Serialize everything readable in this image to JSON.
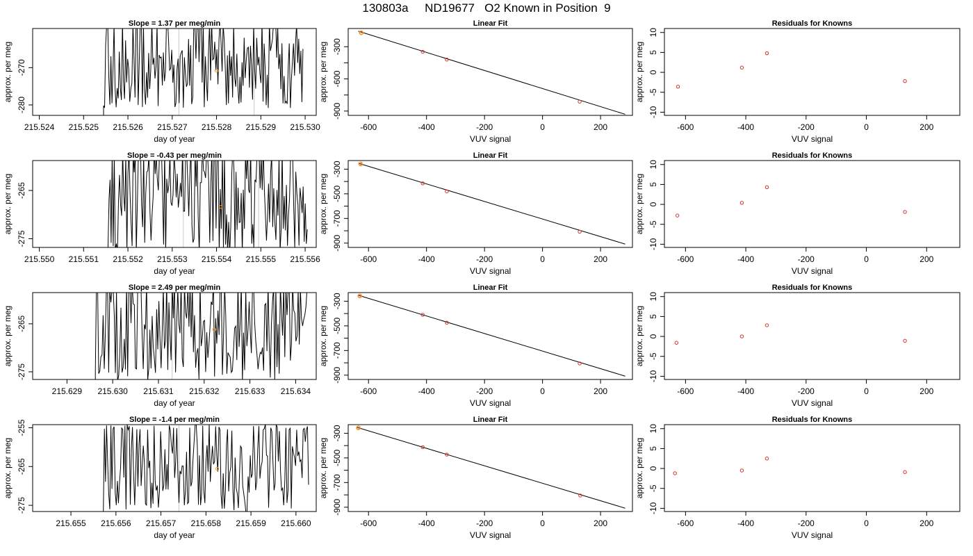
{
  "figure": {
    "title": "130803a     ND19677   O2 Known in Position  9"
  },
  "colors": {
    "trace": "#000000",
    "marker": "#f59a23",
    "residual": "#d0342c",
    "refline": "#c8c8c8"
  },
  "chart_data": [
    {
      "type": "line",
      "row": 0,
      "col": 0,
      "title": "Slope =  1.37  per meg/min",
      "xlabel": "day of year",
      "ylabel": "approx. per meg",
      "xlim": [
        215.52385,
        215.53025
      ],
      "ylim": [
        -282.8,
        -259.5
      ],
      "xticks": [
        215.524,
        215.525,
        215.526,
        215.527,
        215.528,
        215.529,
        215.53
      ],
      "xtick_labels": [
        "215.524",
        "215.525",
        "215.526",
        "215.527",
        "215.528",
        "215.529",
        "215.530"
      ],
      "yticks": [
        -280,
        -270
      ],
      "ytick_labels": [
        "-280",
        "-270"
      ],
      "trace": {
        "x_start": 215.52545,
        "x_end": 215.52995,
        "ymin": -281,
        "ymax": -257,
        "seed": 11,
        "lead": 215.5253
      },
      "vlines": [
        215.52715,
        215.52885
      ],
      "marker": {
        "x": 215.528,
        "y": -270.8
      }
    },
    {
      "type": "line",
      "row": 0,
      "col": 1,
      "title": "Linear Fit",
      "xlabel": "VUV signal",
      "ylabel": "approx. per meg",
      "xlim": [
        -670,
        310
      ],
      "ylim": [
        -940,
        -130
      ],
      "xticks": [
        -600,
        -400,
        -200,
        0,
        200
      ],
      "xtick_labels": [
        "-600",
        "-400",
        "-200",
        "0",
        "200"
      ],
      "yticks": [
        -900,
        -600,
        -300
      ],
      "ytick_labels": [
        "-900",
        "-600",
        "-300"
      ],
      "yminor": [
        -750,
        -450
      ],
      "fit": {
        "x": [
          -635,
          285
        ],
        "y": [
          -155,
          -930
        ]
      },
      "points": {
        "x": [
          -625,
          -413,
          -330,
          128
        ],
        "y": [
          -170,
          -347,
          -420,
          -812
        ]
      },
      "known": {
        "x": -625,
        "y": -170
      }
    },
    {
      "type": "scatter",
      "row": 0,
      "col": 2,
      "title": "Residuals for Knowns",
      "xlabel": "VUV signal",
      "ylabel": "approx. per meg",
      "xlim": [
        -670,
        310
      ],
      "ylim": [
        -10.8,
        11
      ],
      "xticks": [
        -600,
        -400,
        -200,
        0,
        200
      ],
      "xtick_labels": [
        "-600",
        "-400",
        "-200",
        "0",
        "200"
      ],
      "yticks": [
        -10,
        -5,
        0,
        5,
        10
      ],
      "ytick_labels": [
        "-10",
        "-5",
        "0",
        "5",
        "10"
      ],
      "points": {
        "x": [
          -625,
          -413,
          -330,
          128
        ],
        "y": [
          -3.6,
          1.2,
          4.8,
          -2.2
        ]
      }
    },
    {
      "type": "line",
      "row": 1,
      "col": 0,
      "title": "Slope =  -0.43  per meg/min",
      "xlabel": "day of year",
      "ylabel": "approx. per meg",
      "xlim": [
        215.54985,
        215.55625
      ],
      "ylim": [
        -276.8,
        -258.8
      ],
      "xticks": [
        215.55,
        215.551,
        215.552,
        215.553,
        215.554,
        215.555,
        215.556
      ],
      "xtick_labels": [
        "215.550",
        "215.551",
        "215.552",
        "215.553",
        "215.554",
        "215.555",
        "215.556"
      ],
      "yticks": [
        -275,
        -265
      ],
      "ytick_labels": [
        "-275",
        "-265"
      ],
      "trace": {
        "x_start": 215.55155,
        "x_end": 215.55605,
        "ymin": -278,
        "ymax": -256,
        "seed": 23,
        "lead": 215.5514
      },
      "vlines": [
        215.55325,
        215.55495
      ],
      "marker": {
        "x": 215.5541,
        "y": -268.4
      }
    },
    {
      "type": "line",
      "row": 1,
      "col": 1,
      "title": "Linear Fit",
      "xlabel": "VUV signal",
      "ylabel": "approx. per meg",
      "xlim": [
        -670,
        310
      ],
      "ylim": [
        -935,
        -230
      ],
      "xticks": [
        -600,
        -400,
        -200,
        0,
        200
      ],
      "xtick_labels": [
        "-600",
        "-400",
        "-200",
        "0",
        "200"
      ],
      "yticks": [
        -900,
        -700,
        -500,
        -300
      ],
      "ytick_labels": [
        "-900",
        "-700",
        "-500",
        "-300"
      ],
      "yminor": [
        -800,
        -600,
        -400
      ],
      "fit": {
        "x": [
          -635,
          285
        ],
        "y": [
          -252,
          -908
        ]
      },
      "points": {
        "x": [
          -627,
          -413,
          -330,
          128
        ],
        "y": [
          -258,
          -415,
          -480,
          -808
        ]
      },
      "known": {
        "x": -627,
        "y": -258
      }
    },
    {
      "type": "scatter",
      "row": 1,
      "col": 2,
      "title": "Residuals for Knowns",
      "xlabel": "VUV signal",
      "ylabel": "approx. per meg",
      "xlim": [
        -670,
        310
      ],
      "ylim": [
        -10.8,
        11
      ],
      "xticks": [
        -600,
        -400,
        -200,
        0,
        200
      ],
      "xtick_labels": [
        "-600",
        "-400",
        "-200",
        "0",
        "200"
      ],
      "yticks": [
        -10,
        -5,
        0,
        5,
        10
      ],
      "ytick_labels": [
        "-10",
        "-5",
        "0",
        "5",
        "10"
      ],
      "points": {
        "x": [
          -627,
          -413,
          -330,
          128
        ],
        "y": [
          -2.8,
          0.4,
          4.3,
          -1.9
        ]
      }
    },
    {
      "type": "line",
      "row": 2,
      "col": 0,
      "title": "Slope =  2.49  per meg/min",
      "xlabel": "day of year",
      "ylabel": "approx. per meg",
      "xlim": [
        215.62825,
        215.63445
      ],
      "ylim": [
        -276.6,
        -258.5
      ],
      "xticks": [
        215.629,
        215.63,
        215.631,
        215.632,
        215.633,
        215.634
      ],
      "xtick_labels": [
        "215.629",
        "215.630",
        "215.631",
        "215.632",
        "215.633",
        "215.634"
      ],
      "yticks": [
        -275,
        -265
      ],
      "ytick_labels": [
        "-275",
        "-265"
      ],
      "trace": {
        "x_start": 215.62962,
        "x_end": 215.63425,
        "ymin": -277,
        "ymax": -256,
        "seed": 37,
        "lead": 215.6294
      },
      "vlines": [
        215.6313
      ],
      "marker": {
        "x": 215.63222,
        "y": -266.2
      }
    },
    {
      "type": "line",
      "row": 2,
      "col": 1,
      "title": "Linear Fit",
      "xlabel": "VUV signal",
      "ylabel": "approx. per meg",
      "xlim": [
        -670,
        310
      ],
      "ylim": [
        -935,
        -230
      ],
      "xticks": [
        -600,
        -400,
        -200,
        0,
        200
      ],
      "xtick_labels": [
        "-600",
        "-400",
        "-200",
        "0",
        "200"
      ],
      "yticks": [
        -900,
        -700,
        -500,
        -300
      ],
      "ytick_labels": [
        "-900",
        "-700",
        "-500",
        "-300"
      ],
      "yminor": [
        -800,
        -600,
        -400
      ],
      "fit": {
        "x": [
          -635,
          285
        ],
        "y": [
          -252,
          -908
        ]
      },
      "points": {
        "x": [
          -630,
          -413,
          -330,
          128
        ],
        "y": [
          -257,
          -410,
          -474,
          -805
        ]
      },
      "known": {
        "x": -630,
        "y": -257
      }
    },
    {
      "type": "scatter",
      "row": 2,
      "col": 2,
      "title": "Residuals for Knowns",
      "xlabel": "VUV signal",
      "ylabel": "approx. per meg",
      "xlim": [
        -670,
        310
      ],
      "ylim": [
        -10.8,
        11
      ],
      "xticks": [
        -600,
        -400,
        -200,
        0,
        200
      ],
      "xtick_labels": [
        "-600",
        "-400",
        "-200",
        "0",
        "200"
      ],
      "yticks": [
        -10,
        -5,
        0,
        5,
        10
      ],
      "ytick_labels": [
        "-10",
        "-5",
        "0",
        "5",
        "10"
      ],
      "points": {
        "x": [
          -630,
          -413,
          -330,
          128
        ],
        "y": [
          -1.6,
          0.0,
          2.8,
          -1.1
        ]
      }
    },
    {
      "type": "line",
      "row": 3,
      "col": 0,
      "title": "Slope =  -1.4  per meg/min",
      "xlabel": "day of year",
      "ylabel": "approx. per meg",
      "xlim": [
        215.65415,
        215.66045
      ],
      "ylim": [
        -276.6,
        -254.2
      ],
      "xticks": [
        215.655,
        215.656,
        215.657,
        215.658,
        215.659,
        215.66
      ],
      "xtick_labels": [
        "215.655",
        "215.656",
        "215.657",
        "215.658",
        "215.659",
        "215.660"
      ],
      "yticks": [
        -275,
        -265,
        -255
      ],
      "ytick_labels": [
        "-275",
        "-265",
        "-255"
      ],
      "trace": {
        "x_start": 215.65572,
        "x_end": 215.66028,
        "ymin": -277,
        "ymax": -254,
        "seed": 53,
        "lead": 215.6555
      },
      "vlines": [
        215.6574
      ],
      "marker": {
        "x": 215.65825,
        "y": -265.6
      }
    },
    {
      "type": "line",
      "row": 3,
      "col": 1,
      "title": "Linear Fit",
      "xlabel": "VUV signal",
      "ylabel": "approx. per meg",
      "xlim": [
        -670,
        310
      ],
      "ylim": [
        -935,
        -230
      ],
      "xticks": [
        -600,
        -400,
        -200,
        0,
        200
      ],
      "xtick_labels": [
        "-600",
        "-400",
        "-200",
        "0",
        "200"
      ],
      "yticks": [
        -900,
        -700,
        -500,
        -300
      ],
      "ytick_labels": [
        "-900",
        "-700",
        "-500",
        "-300"
      ],
      "yminor": [
        -800,
        -600,
        -400
      ],
      "fit": {
        "x": [
          -640,
          285
        ],
        "y": [
          -252,
          -908
        ]
      },
      "points": {
        "x": [
          -635,
          -413,
          -330,
          130
        ],
        "y": [
          -256,
          -413,
          -473,
          -805
        ]
      },
      "known": {
        "x": -635,
        "y": -256
      }
    },
    {
      "type": "scatter",
      "row": 3,
      "col": 2,
      "title": "Residuals for Knowns",
      "xlabel": "VUV signal",
      "ylabel": "approx. per meg",
      "xlim": [
        -670,
        310
      ],
      "ylim": [
        -10.8,
        11
      ],
      "xticks": [
        -600,
        -400,
        -200,
        0,
        200
      ],
      "xtick_labels": [
        "-600",
        "-400",
        "-200",
        "0",
        "200"
      ],
      "yticks": [
        -10,
        -5,
        0,
        5,
        10
      ],
      "ytick_labels": [
        "-10",
        "-5",
        "0",
        "5",
        "10"
      ],
      "points": {
        "x": [
          -635,
          -413,
          -330,
          128
        ],
        "y": [
          -1.2,
          -0.5,
          2.5,
          -0.9
        ]
      }
    }
  ]
}
